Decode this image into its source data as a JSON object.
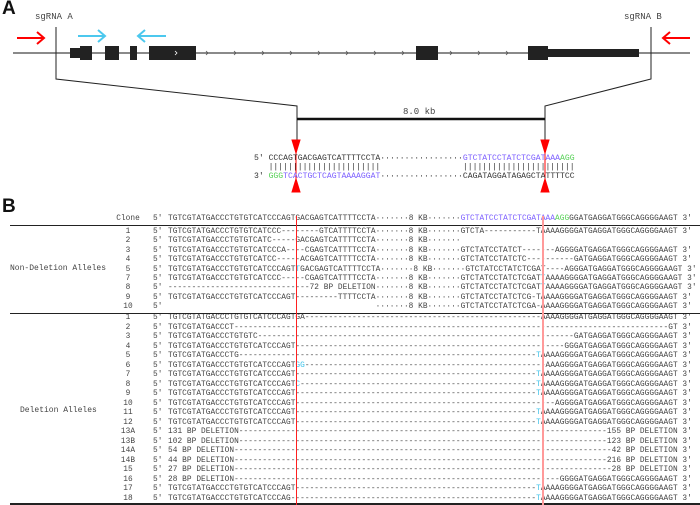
{
  "colors": {
    "red": "#ff0000",
    "cyan": "#4cc8ee",
    "purple": "#7a5cff",
    "green": "#55d055",
    "gene": "#222222"
  },
  "panel_a": {
    "label": "A",
    "sgrna_a": "sgRNA A",
    "sgrna_b": "sgRNA B",
    "distance": "8.0 kb",
    "top_strand": {
      "prefix": "5′",
      "left": "CCCAGTGACGAGTCATTTTCCTA",
      "dots": "·················",
      "right_purple": "GTCTATCCTATCTCGATAAA",
      "right_green": "AGG"
    },
    "pairing": {
      "left": "|||||||||||||||||||||||",
      "right": "|||||||||||||||||||||||"
    },
    "bottom_strand": {
      "prefix": "3′",
      "left_green": "GGG",
      "left_purple": "TCACTGCTCAGTAAAAGGAT",
      "dots": "·················",
      "right": "CAGATAGGATAGAGCTATTTTCC"
    }
  },
  "panel_b": {
    "label": "B",
    "five_prime": "5′",
    "three_prime": "3′",
    "header": {
      "clone": "Clone",
      "segs": [
        {
          "t": "TGTCGTATGACCCTGTGTCATCCCAGT"
        },
        {
          "t": "GACGAGTCATTTTCCTA"
        },
        {
          "t": "·······8 KB·······"
        },
        {
          "t": "GTCTATCCTATCTCGATAAA",
          "hl": "purple"
        },
        {
          "t": "AGG",
          "hl": "green"
        },
        {
          "t": "GGATGAGGATGGGCAGGGGAAGT"
        }
      ]
    },
    "non_deletion": {
      "label": "Non-Deletion Alleles",
      "rows": [
        {
          "clone": "1",
          "end": true,
          "segs": [
            {
              "t": "TGTCGTATGACCCTGTGTCATCCC--------GTCATTTTCCTA·······8 KB·······GTCTA-----------TAAAAGGGGATGAGGATGGGCAGGGGAAGT"
            }
          ]
        },
        {
          "clone": "2",
          "end": false,
          "segs": [
            {
              "t": "TGTCGTATGACCCTGTGTCATC-----GACGAGTCATTTTCCTA·······8 KB·······"
            }
          ]
        },
        {
          "clone": "3",
          "end": true,
          "segs": [
            {
              "t": "TGTCGTATGACCCTGTGTCATCCCA----CGAGTCATTTTCCTA·······8 KB·······GTCTATCCTATCT-------AGGGGATGAGGATGGGCAGGGGAAGT"
            }
          ]
        },
        {
          "clone": "4",
          "end": true,
          "segs": [
            {
              "t": "TGTCGTATGACCCTGTGTCATCC-----ACGAGTCATTTTCCTA·······8 KB·······GTCTATCCTATCTC----------GATGAGGATGGGCAGGGGAAGT"
            }
          ]
        },
        {
          "clone": "5",
          "end": true,
          "segs": [
            {
              "t": "TGTCGTATGACCCTGTGTCATCCCAGT"
            },
            {
              "t": "T",
              "hl": "cyan"
            },
            {
              "t": "GACGAGTCATTTTCCTA·······8 KB·······GTCTATCCTATCTCGAT----AGGGATGAGGATGGGCAGGGGAAGT"
            }
          ]
        },
        {
          "clone": "7",
          "end": true,
          "segs": [
            {
              "t": "TGTCGTATGACCCTGTGTCATCCC-----CGAGTCATTTTCCTA·······8 KB·······GTCTATCCTATCTCGAT"
            },
            {
              "t": "T",
              "hl": "cyan"
            },
            {
              "t": "AAAAGGGGATGAGGATGGGCAGGGGAAGT"
            }
          ]
        },
        {
          "clone": "8",
          "end": true,
          "segs": [
            {
              "t": "------------------------------72 BP DELETION·······8 KB·······GTCTATCCTATCTCGAT"
            },
            {
              "t": "T",
              "hl": "cyan"
            },
            {
              "t": "AAAAGGGGATGAGGATGGGCAGGGGAAGT"
            }
          ]
        },
        {
          "clone": "9",
          "end": true,
          "segs": [
            {
              "t": "TGTCGTATGACCCTGTGTCATCCCAGT---------TTTTCCTA·······8 KB·······GTCTATCCTATCTCG-TAAAAGGGGATGAGGATGGGCAGGGGAAGT"
            }
          ]
        },
        {
          "clone": "10",
          "end": true,
          "segs": [
            {
              "t": "                                            ·······8 KB·······GTCTATCCTATCTCGA-AAAAGGGGATGAGGATGGGCAGGGGAAGT"
            }
          ]
        }
      ]
    },
    "deletion": {
      "label": "Deletion Alleles",
      "rows": [
        {
          "clone": "1",
          "segs": [
            {
              "t": "TGTCGTATGACCCTGTGTCATCCCAGTGA"
            },
            {
              "pad": "-"
            },
            {
              "t": "AAAAGGGGATGAGGATGGGCAGGGGAAGT"
            }
          ]
        },
        {
          "clone": "2",
          "segs": [
            {
              "t": "TGTCGTATGACCCT"
            },
            {
              "pad": "-"
            },
            {
              "t": "GT"
            }
          ]
        },
        {
          "clone": "3",
          "segs": [
            {
              "t": "TGTCGTATGACCCTGTGTC"
            },
            {
              "pad": "-"
            },
            {
              "t": "GATGAGGATGGGCAGGGGAAGT"
            }
          ]
        },
        {
          "clone": "4",
          "segs": [
            {
              "t": "TGTCGTATGACCCTGTGTCATCCCAGT"
            },
            {
              "pad": "-"
            },
            {
              "t": "GGGATGAGGATGGGCAGGGGAAGT"
            }
          ]
        },
        {
          "clone": "5",
          "segs": [
            {
              "t": "TGTCGTATGACCCTG"
            },
            {
              "pad": "-"
            },
            {
              "t": "T",
              "hl": "cyan"
            },
            {
              "t": "AAAAGGGGATGAGGATGGGCAGGGGAAGT"
            }
          ]
        },
        {
          "clone": "6",
          "segs": [
            {
              "t": "TGTCGTATGACCCTGTGTCATCCCAGT"
            },
            {
              "t": "GG",
              "hl": "cyan"
            },
            {
              "pad": "-"
            },
            {
              "t": "AAAGGGGATGAGGATGGGCAGGGGAAGT"
            }
          ]
        },
        {
          "clone": "7",
          "segs": [
            {
              "t": "TGTCGTATGACCCTGTGTCATCCCAGT"
            },
            {
              "pad": "-"
            },
            {
              "t": "T",
              "hl": "cyan"
            },
            {
              "t": "AAAAGGGGATGAGGATGGGCAGGGGAAGT"
            }
          ]
        },
        {
          "clone": "8",
          "segs": [
            {
              "t": "TGTCGTATGACCCTGTGTCATCCCAGT"
            },
            {
              "t": "C",
              "hl": "cyan"
            },
            {
              "pad": "-"
            },
            {
              "t": "T",
              "hl": "cyan"
            },
            {
              "t": "AAAAGGGGATGAGGATGGGCAGGGGAAGT"
            }
          ]
        },
        {
          "clone": "9",
          "segs": [
            {
              "t": "TGTCGTATGACCCTGTGTCATCCCAGT"
            },
            {
              "pad": "-"
            },
            {
              "t": "T",
              "hl": "cyan"
            },
            {
              "t": "AAAAGGGGATGAGGATGGGCAGGGGAAGT"
            }
          ]
        },
        {
          "clone": "10",
          "segs": [
            {
              "t": "TGTCGTATGACCCTGTGTCATCCCAGT"
            },
            {
              "pad": "-"
            },
            {
              "t": "AGGGGATGAGGATGGGCAGGGGAAGT"
            }
          ]
        },
        {
          "clone": "11",
          "segs": [
            {
              "t": "TGTCGTATGACCCTGTGTCATCCCAGT"
            },
            {
              "pad": "-"
            },
            {
              "t": "T",
              "hl": "cyan"
            },
            {
              "t": "AAAAGGGGATGAGGATGGGCAGGGGAAGT"
            }
          ]
        },
        {
          "clone": "12",
          "segs": [
            {
              "t": "TGTCGTATGACCCTGTGTCATCCCAGT"
            },
            {
              "pad": "-"
            },
            {
              "t": "T",
              "hl": "cyan"
            },
            {
              "t": "AAAAGGGGATGAGGATGGGCAGGGGAAGT"
            }
          ]
        },
        {
          "clone": "13A",
          "segs": [
            {
              "t": "131 BP DELETION"
            },
            {
              "pad": "-"
            },
            {
              "t": "155 BP DELETION"
            }
          ]
        },
        {
          "clone": "13B",
          "segs": [
            {
              "t": "102 BP DELETION"
            },
            {
              "pad": "-"
            },
            {
              "t": "123 BP DELETION"
            }
          ]
        },
        {
          "clone": "14A",
          "segs": [
            {
              "t": "54 BP DELETION"
            },
            {
              "pad": "-"
            },
            {
              "t": "42 BP DELETION"
            }
          ]
        },
        {
          "clone": "14B",
          "segs": [
            {
              "t": "44 BP DELETION"
            },
            {
              "pad": "-"
            },
            {
              "t": "216 BP DELETION"
            }
          ]
        },
        {
          "clone": "15",
          "segs": [
            {
              "t": "27 BP DELETION"
            },
            {
              "pad": "-"
            },
            {
              "t": "28 BP DELETION"
            }
          ]
        },
        {
          "clone": "16",
          "segs": [
            {
              "t": "28 BP DELETION"
            },
            {
              "pad": "-"
            },
            {
              "t": "GGGGATGAGGATGGGCAGGGGAAGT"
            }
          ]
        },
        {
          "clone": "17",
          "segs": [
            {
              "t": "TGTCGTATGACCCTGTGTCATCCCAGT"
            },
            {
              "pad": "-"
            },
            {
              "t": "T",
              "hl": "cyan"
            },
            {
              "t": "AAAAGGGGATGAGGATGGGCAGGGGAAGT"
            }
          ]
        },
        {
          "clone": "18",
          "segs": [
            {
              "t": "TGTCGTATGACCCTGTGTCATCCCAG"
            },
            {
              "pad": "-"
            },
            {
              "t": "T",
              "hl": "cyan"
            },
            {
              "t": "AAAAGGGGATGAGGATGGGCAGGGGAAGT"
            }
          ]
        }
      ]
    }
  }
}
